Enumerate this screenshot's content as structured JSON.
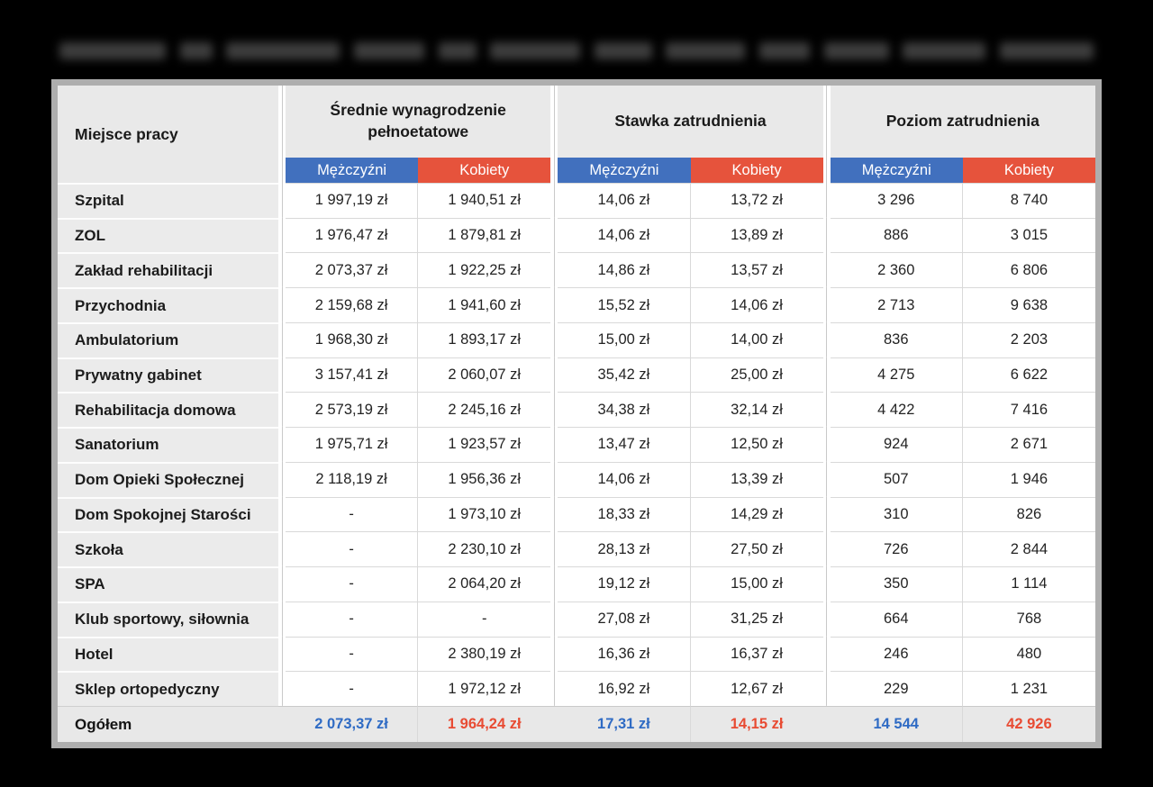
{
  "colors": {
    "men_header_bg": "#4170be",
    "women_header_bg": "#e6533c",
    "total_men_text": "#2f6bc4",
    "total_women_text": "#e84b33"
  },
  "chart_data": {
    "type": "table",
    "corner_header": "Miejsce pracy",
    "column_groups": [
      {
        "label": "Średnie wynagrodzenie pełnoetatowe"
      },
      {
        "label": "Stawka zatrudnienia"
      },
      {
        "label": "Poziom zatrudnienia"
      }
    ],
    "subheaders": {
      "men": "Mężczyźni",
      "women": "Kobiety"
    },
    "rows": [
      {
        "label": "Szpital",
        "values": [
          "1 997,19 zł",
          "1 940,51 zł",
          "14,06 zł",
          "13,72 zł",
          "3 296",
          "8 740"
        ]
      },
      {
        "label": "ZOL",
        "values": [
          "1 976,47 zł",
          "1 879,81 zł",
          "14,06 zł",
          "13,89 zł",
          "886",
          "3 015"
        ]
      },
      {
        "label": "Zakład rehabilitacji",
        "values": [
          "2 073,37 zł",
          "1 922,25 zł",
          "14,86 zł",
          "13,57 zł",
          "2 360",
          "6 806"
        ]
      },
      {
        "label": "Przychodnia",
        "values": [
          "2 159,68 zł",
          "1 941,60 zł",
          "15,52 zł",
          "14,06 zł",
          "2 713",
          "9 638"
        ]
      },
      {
        "label": "Ambulatorium",
        "values": [
          "1 968,30 zł",
          "1 893,17 zł",
          "15,00 zł",
          "14,00 zł",
          "836",
          "2 203"
        ]
      },
      {
        "label": "Prywatny gabinet",
        "values": [
          "3 157,41 zł",
          "2 060,07 zł",
          "35,42 zł",
          "25,00 zł",
          "4 275",
          "6 622"
        ]
      },
      {
        "label": "Rehabilitacja domowa",
        "values": [
          "2 573,19 zł",
          "2 245,16 zł",
          "34,38 zł",
          "32,14 zł",
          "4 422",
          "7 416"
        ]
      },
      {
        "label": "Sanatorium",
        "values": [
          "1 975,71 zł",
          "1 923,57 zł",
          "13,47 zł",
          "12,50 zł",
          "924",
          "2 671"
        ]
      },
      {
        "label": "Dom Opieki Społecznej",
        "values": [
          "2 118,19 zł",
          "1 956,36 zł",
          "14,06 zł",
          "13,39 zł",
          "507",
          "1 946"
        ]
      },
      {
        "label": "Dom Spokojnej Starości",
        "values": [
          "-",
          "1 973,10 zł",
          "18,33 zł",
          "14,29 zł",
          "310",
          "826"
        ]
      },
      {
        "label": "Szkoła",
        "values": [
          "-",
          "2 230,10 zł",
          "28,13 zł",
          "27,50 zł",
          "726",
          "2 844"
        ]
      },
      {
        "label": "SPA",
        "values": [
          "-",
          "2 064,20 zł",
          "19,12 zł",
          "15,00 zł",
          "350",
          "1 114"
        ]
      },
      {
        "label": "Klub sportowy, siłownia",
        "values": [
          "-",
          "-",
          "27,08 zł",
          "31,25 zł",
          "664",
          "768"
        ]
      },
      {
        "label": "Hotel",
        "values": [
          "-",
          "2 380,19 zł",
          "16,36 zł",
          "16,37 zł",
          "246",
          "480"
        ]
      },
      {
        "label": "Sklep ortopedyczny",
        "values": [
          "-",
          "1 972,12 zł",
          "16,92 zł",
          "12,67 zł",
          "229",
          "1 231"
        ]
      }
    ],
    "total_row": {
      "label": "Ogółem",
      "values": [
        "2 073,37 zł",
        "1 964,24 zł",
        "17,31 zł",
        "14,15 zł",
        "14 544",
        "42 926"
      ]
    }
  }
}
